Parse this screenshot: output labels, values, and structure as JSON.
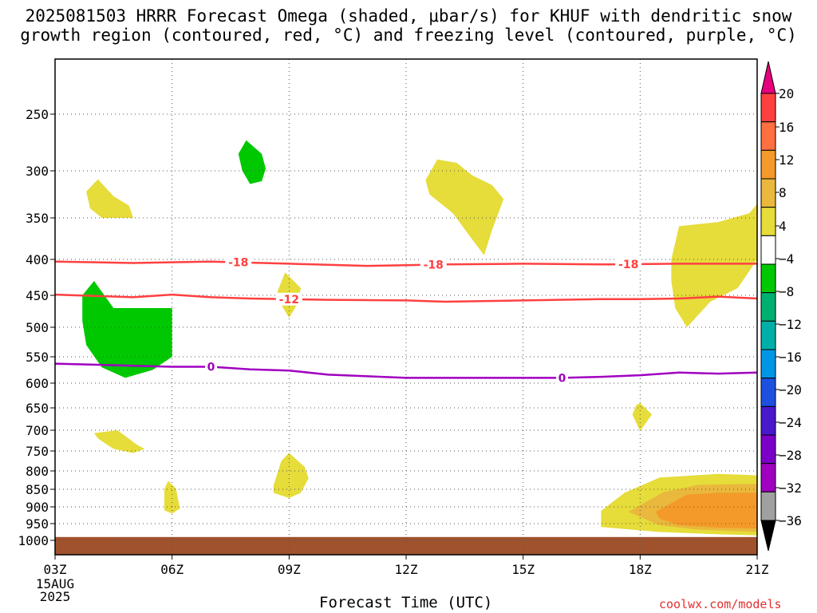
{
  "title_line1": "2025081503 HRRR Forecast Omega (shaded, μbar/s) for KHUF with dendritic snow",
  "title_line2": "growth region (contoured, red, °C) and freezing level (contoured, purple, °C)",
  "credit": "coolwx.com/models",
  "chart_data": {
    "type": "heatmap",
    "xlabel": "Forecast Time (UTC)",
    "x_ticks": [
      "03Z",
      "06Z",
      "09Z",
      "12Z",
      "15Z",
      "18Z",
      "21Z"
    ],
    "x_date_label": [
      "15AUG",
      "2025"
    ],
    "x_range_hours": [
      3,
      21
    ],
    "y_ticks": [
      250,
      300,
      350,
      400,
      450,
      500,
      550,
      600,
      650,
      700,
      750,
      800,
      850,
      900,
      950,
      1000
    ],
    "y_range_hpa": [
      200,
      1020
    ],
    "grid": true,
    "colorbar": {
      "labels": [
        20,
        16,
        12,
        8,
        4,
        -4,
        -8,
        -12,
        -16,
        -20,
        -24,
        -28,
        -32,
        -36
      ],
      "colors": [
        "#e6007e",
        "#ff4040",
        "#ff6f3f",
        "#f39a2a",
        "#e9b83c",
        "#e6dc3a",
        "#ffffff",
        "#00c800",
        "#00b070",
        "#00b0a8",
        "#0096e6",
        "#1e50e0",
        "#4a18cc",
        "#7b00c8",
        "#a000c0",
        "#a0a0a0",
        "#000000"
      ]
    },
    "contours": [
      {
        "label": "-18",
        "color": "#ff4040",
        "points": [
          [
            3,
            403
          ],
          [
            5,
            405
          ],
          [
            7,
            403
          ],
          [
            9,
            406
          ],
          [
            11,
            409
          ],
          [
            13,
            407
          ],
          [
            15,
            406
          ],
          [
            17,
            407
          ],
          [
            19,
            406
          ],
          [
            21,
            406
          ]
        ],
        "label_at_hours": [
          7.7,
          12.7,
          17.7
        ]
      },
      {
        "label": "-12",
        "color": "#ff4040",
        "points": [
          [
            3,
            449
          ],
          [
            5,
            453
          ],
          [
            6,
            449
          ],
          [
            7,
            453
          ],
          [
            8,
            455
          ],
          [
            10,
            457
          ],
          [
            12,
            458
          ],
          [
            13,
            460
          ],
          [
            15,
            458
          ],
          [
            17,
            456
          ],
          [
            18,
            456
          ],
          [
            19,
            455
          ],
          [
            20,
            452
          ],
          [
            21,
            455
          ]
        ],
        "label_at_hours": [
          9
        ]
      },
      {
        "label": "0",
        "color": "#a000c0",
        "points": [
          [
            3,
            563
          ],
          [
            5,
            567
          ],
          [
            6,
            569
          ],
          [
            7,
            569
          ],
          [
            8,
            574
          ],
          [
            9,
            576
          ],
          [
            10,
            584
          ],
          [
            12,
            590
          ],
          [
            14,
            590
          ],
          [
            15,
            590
          ],
          [
            16,
            590
          ],
          [
            17,
            588
          ],
          [
            18,
            585
          ],
          [
            19,
            580
          ],
          [
            20,
            582
          ],
          [
            21,
            580
          ]
        ],
        "label_at_hours": [
          7,
          16
        ]
      }
    ],
    "regions": [
      {
        "value": "8",
        "color": "#e6dc3a",
        "points": [
          [
            3.8,
            322
          ],
          [
            4.1,
            309
          ],
          [
            4.5,
            327
          ],
          [
            4.9,
            337
          ],
          [
            5.0,
            350
          ],
          [
            4.2,
            350
          ],
          [
            3.9,
            340
          ]
        ]
      },
      {
        "value": "-8",
        "color": "#00c800",
        "points": [
          [
            7.7,
            285
          ],
          [
            7.9,
            273
          ],
          [
            8.3,
            285
          ],
          [
            8.4,
            298
          ],
          [
            8.3,
            311
          ],
          [
            8.0,
            314
          ],
          [
            7.8,
            300
          ]
        ]
      },
      {
        "value": "8",
        "color": "#e6dc3a",
        "points": [
          [
            12.5,
            310
          ],
          [
            12.8,
            290
          ],
          [
            13.3,
            293
          ],
          [
            13.7,
            305
          ],
          [
            14.2,
            315
          ],
          [
            14.5,
            330
          ],
          [
            14.2,
            365
          ],
          [
            14.0,
            395
          ],
          [
            13.6,
            370
          ],
          [
            13.2,
            345
          ],
          [
            12.6,
            325
          ]
        ]
      },
      {
        "value": "8",
        "color": "#e6dc3a",
        "points": [
          [
            18.8,
            400
          ],
          [
            19.0,
            360
          ],
          [
            20.0,
            355
          ],
          [
            20.8,
            345
          ],
          [
            21.0,
            335
          ],
          [
            21.0,
            400
          ],
          [
            20.5,
            440
          ],
          [
            19.8,
            460
          ],
          [
            19.2,
            500
          ],
          [
            18.9,
            470
          ],
          [
            18.8,
            430
          ]
        ]
      },
      {
        "value": "8",
        "color": "#e6dc3a",
        "points": [
          [
            8.7,
            445
          ],
          [
            8.9,
            418
          ],
          [
            9.3,
            440
          ],
          [
            9.2,
            465
          ],
          [
            9.0,
            485
          ],
          [
            8.8,
            465
          ]
        ]
      },
      {
        "value": "-8",
        "color": "#00c800",
        "points": [
          [
            3.7,
            450
          ],
          [
            4.0,
            430
          ],
          [
            4.5,
            470
          ],
          [
            6.0,
            470
          ],
          [
            6.0,
            550
          ],
          [
            5.5,
            575
          ],
          [
            4.8,
            590
          ],
          [
            4.2,
            570
          ],
          [
            3.8,
            530
          ],
          [
            3.7,
            490
          ]
        ]
      },
      {
        "value": "8",
        "color": "#e6dc3a",
        "points": [
          [
            18.0,
            640
          ],
          [
            18.3,
            665
          ],
          [
            18.0,
            702
          ],
          [
            17.8,
            665
          ],
          [
            17.9,
            645
          ]
        ]
      },
      {
        "value": "8",
        "color": "#e6dc3a",
        "points": [
          [
            4.0,
            707
          ],
          [
            4.6,
            700
          ],
          [
            5.1,
            735
          ],
          [
            5.3,
            745
          ],
          [
            5.0,
            755
          ],
          [
            4.5,
            745
          ],
          [
            4.1,
            720
          ]
        ]
      },
      {
        "value": "8",
        "color": "#e6dc3a",
        "points": [
          [
            5.8,
            850
          ],
          [
            5.9,
            827
          ],
          [
            6.1,
            848
          ],
          [
            6.2,
            905
          ],
          [
            6.0,
            920
          ],
          [
            5.8,
            910
          ]
        ]
      },
      {
        "value": "8",
        "color": "#e6dc3a",
        "points": [
          [
            8.6,
            840
          ],
          [
            8.8,
            775
          ],
          [
            9.0,
            755
          ],
          [
            9.4,
            790
          ],
          [
            9.5,
            820
          ],
          [
            9.3,
            860
          ],
          [
            9.0,
            875
          ],
          [
            8.6,
            860
          ]
        ]
      },
      {
        "value": "8",
        "color": "#e6dc3a",
        "points": [
          [
            17.0,
            912
          ],
          [
            17.6,
            860
          ],
          [
            18.5,
            818
          ],
          [
            20.0,
            808
          ],
          [
            21.0,
            812
          ],
          [
            21.0,
            985
          ],
          [
            20.0,
            982
          ],
          [
            18.5,
            975
          ],
          [
            17.0,
            960
          ]
        ]
      },
      {
        "value": "12",
        "color": "#e9b83c",
        "points": [
          [
            17.7,
            915
          ],
          [
            18.6,
            858
          ],
          [
            19.5,
            838
          ],
          [
            21.0,
            835
          ],
          [
            21.0,
            975
          ],
          [
            19.5,
            968
          ],
          [
            18.5,
            955
          ]
        ]
      },
      {
        "value": "12",
        "color": "#f39a2a",
        "points": [
          [
            18.4,
            915
          ],
          [
            19.2,
            865
          ],
          [
            20.0,
            860
          ],
          [
            21.0,
            860
          ],
          [
            21.0,
            965
          ],
          [
            20.0,
            962
          ],
          [
            19.0,
            955
          ],
          [
            18.5,
            935
          ]
        ]
      }
    ],
    "ground": {
      "from_hpa": 990,
      "color": "#a0522d"
    }
  }
}
